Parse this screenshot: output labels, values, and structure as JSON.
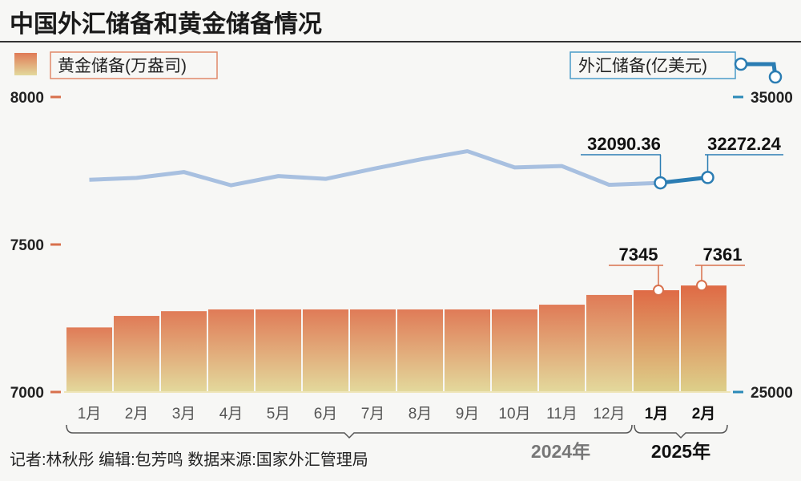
{
  "title": "中国外汇储备和黄金储备情况",
  "footer": "记者:林秋彤  编辑:包芳鸣  数据来源:国家外汇管理局",
  "colors": {
    "bar_top": "#e07b57",
    "bar_bottom": "#e2d89c",
    "line_2024": "#a8c0e0",
    "line_2025": "#2b7db3",
    "left_axis": "#d8704c",
    "right_axis": "#2b8ab8"
  },
  "chart_data": {
    "type": "bar+line",
    "title": "中国外汇储备和黄金储备情况",
    "categories": [
      "1月",
      "2月",
      "3月",
      "4月",
      "5月",
      "6月",
      "7月",
      "8月",
      "9月",
      "10月",
      "11月",
      "12月",
      "1月",
      "2月"
    ],
    "year_groups": [
      {
        "label": "2024年",
        "count": 12
      },
      {
        "label": "2025年",
        "count": 2
      }
    ],
    "left_axis": {
      "label": "黄金储备(万盎司)",
      "ylim": [
        7000,
        8000
      ],
      "ticks": [
        "7000",
        "7500",
        "8000"
      ]
    },
    "right_axis": {
      "label": "外汇储备(亿美元)",
      "ylim": [
        25000,
        35000
      ],
      "ticks": [
        "25000",
        "35000"
      ]
    },
    "series": [
      {
        "name": "黄金储备(万盎司)",
        "type": "bar",
        "axis": "left",
        "values": [
          7219,
          7258,
          7274,
          7280,
          7280,
          7280,
          7280,
          7280,
          7280,
          7280,
          7296,
          7329,
          7345,
          7361
        ]
      },
      {
        "name": "外汇储备(亿美元)",
        "type": "line",
        "axis": "right",
        "values": [
          32193,
          32258,
          32457,
          32008,
          32320,
          32224,
          32564,
          32882,
          33164,
          32611,
          32659,
          32024,
          32090.36,
          32272.24
        ]
      }
    ],
    "annotations": {
      "bar": [
        "7345",
        "7361"
      ],
      "line": [
        "32090.36",
        "32272.24"
      ]
    },
    "grid": false,
    "legend": "top"
  }
}
